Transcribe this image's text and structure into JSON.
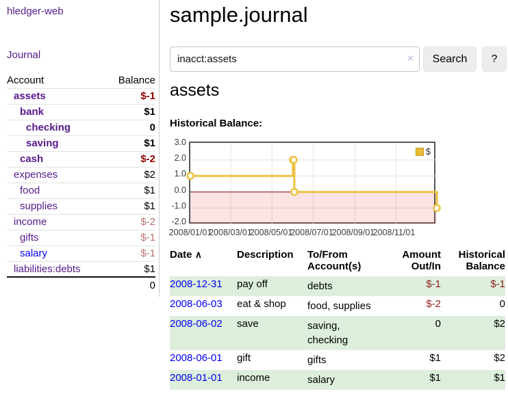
{
  "app": {
    "brand": "hledger-web",
    "nav_journal": "Journal"
  },
  "colors": {
    "link_purple": "#551A8B",
    "link_blue": "#0000EE",
    "negative_strong": "#8b0000",
    "negative_soft": "#b96f6f",
    "register_negative": "#8f1d1d",
    "row_stripe_green": "#ddeedd",
    "chart_line": "#EDC240",
    "button_bg": "#ededed"
  },
  "sidebar": {
    "header": {
      "account": "Account",
      "balance": "Balance"
    },
    "accounts": [
      {
        "name": "assets",
        "depth": 1,
        "bold": true,
        "balance": "$-1"
      },
      {
        "name": "bank",
        "depth": 2,
        "bold": true,
        "balance": "$1"
      },
      {
        "name": "checking",
        "depth": 3,
        "bold": true,
        "balance": "0"
      },
      {
        "name": "saving",
        "depth": 3,
        "bold": true,
        "balance": "$1"
      },
      {
        "name": "cash",
        "depth": 2,
        "bold": true,
        "balance": "$-2"
      },
      {
        "name": "expenses",
        "depth": 1,
        "bold": false,
        "balance": "$2"
      },
      {
        "name": "food",
        "depth": 2,
        "bold": false,
        "balance": "$1"
      },
      {
        "name": "supplies",
        "depth": 2,
        "bold": false,
        "balance": "$1"
      },
      {
        "name": "income",
        "depth": 1,
        "bold": false,
        "balance": "$-2"
      },
      {
        "name": "gifts",
        "depth": 2,
        "bold": false,
        "balance": "$-1"
      },
      {
        "name": "salary",
        "depth": 2,
        "bold": false,
        "balance": "$-1"
      },
      {
        "name": "liabilities:debts",
        "depth": 1,
        "bold": false,
        "balance": "$1"
      }
    ],
    "total": "0"
  },
  "header": {
    "title": "sample.journal"
  },
  "search": {
    "value": "inacct:assets",
    "clear_icon": "×",
    "search_label": "Search",
    "help_label": "?"
  },
  "account_page": {
    "heading": "assets",
    "chart_label": "Historical Balance:"
  },
  "chart_data": {
    "type": "line",
    "step": true,
    "title": "Historical Balance:",
    "x_range": [
      "2008-01-01",
      "2008-12-31"
    ],
    "ylim": [
      -2,
      3
    ],
    "y_ticks": [
      3.0,
      2.0,
      1.0,
      0.0,
      -1.0,
      -2.0
    ],
    "x_ticks": [
      "2008/01/01",
      "2008/03/01",
      "2008/05/01",
      "2008/07/01",
      "2008/09/01",
      "2008/11/01"
    ],
    "series": [
      {
        "name": "$",
        "color": "#EDC240",
        "points": [
          {
            "x": "2008-01-01",
            "y": 1
          },
          {
            "x": "2008-06-01",
            "y": 2
          },
          {
            "x": "2008-06-02",
            "y": 2
          },
          {
            "x": "2008-06-03",
            "y": 0
          },
          {
            "x": "2008-12-31",
            "y": -1
          }
        ]
      }
    ],
    "legend": {
      "position": "top-right",
      "label": "$"
    },
    "grid": true,
    "grid_color": "#e3e3e3",
    "negative_region_color": "rgba(235,87,87,0.16)",
    "zero_line_color": "#8b0000"
  },
  "register": {
    "headers": {
      "date": "Date",
      "sort_icon": "∧",
      "description": "Description",
      "accounts": "To/From\nAccount(s)",
      "amount": "Amount\nOut/In",
      "balance": "Historical\nBalance"
    },
    "rows": [
      {
        "date": "2008-12-31",
        "description": "pay off",
        "accounts": "debts",
        "amount": "$-1",
        "balance": "$-1"
      },
      {
        "date": "2008-06-03",
        "description": "eat & shop",
        "accounts": "food, supplies",
        "amount": "$-2",
        "balance": "0"
      },
      {
        "date": "2008-06-02",
        "description": "save",
        "accounts": "saving,\nchecking",
        "amount": "0",
        "balance": "$2"
      },
      {
        "date": "2008-06-01",
        "description": "gift",
        "accounts": "gifts",
        "amount": "$1",
        "balance": "$2"
      },
      {
        "date": "2008-01-01",
        "description": "income",
        "accounts": "salary",
        "amount": "$1",
        "balance": "$1"
      }
    ]
  }
}
